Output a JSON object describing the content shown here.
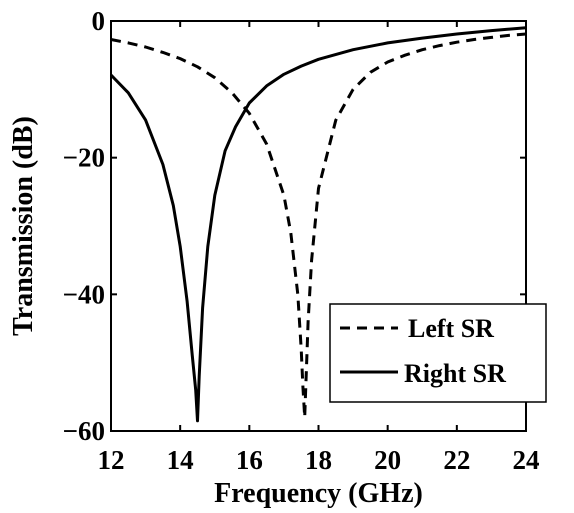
{
  "chart_data": {
    "type": "line",
    "xlabel": "Frequency (GHz)",
    "ylabel": "Transmission (dB)",
    "xlim": [
      12,
      24
    ],
    "ylim": [
      -60,
      0
    ],
    "x_ticks": [
      "12",
      "14",
      "16",
      "18",
      "20",
      "22",
      "24"
    ],
    "y_ticks": [
      "0",
      "−20",
      "−40",
      "−60"
    ],
    "x_tick_values": [
      12,
      14,
      16,
      18,
      20,
      22,
      24
    ],
    "y_tick_values": [
      0,
      -20,
      -40,
      -60
    ],
    "grid": false,
    "legend_position": "bottom-right",
    "series": [
      {
        "name": "Left SR",
        "style": "dashed",
        "color": "#000000",
        "x": [
          12.0,
          12.5,
          13.0,
          13.5,
          14.0,
          14.5,
          15.0,
          15.5,
          16.0,
          16.5,
          17.0,
          17.2,
          17.4,
          17.5,
          17.55,
          17.6,
          17.65,
          17.7,
          17.8,
          18.0,
          18.5,
          19.0,
          19.5,
          20.0,
          20.5,
          21.0,
          21.5,
          22.0,
          22.5,
          23.0,
          23.5,
          24.0
        ],
        "values": [
          -2.7,
          -3.2,
          -3.8,
          -4.6,
          -5.5,
          -6.7,
          -8.3,
          -10.5,
          -13.5,
          -18.0,
          -25.5,
          -31.0,
          -40.0,
          -48.0,
          -53.5,
          -58.0,
          -51.0,
          -44.0,
          -35.0,
          -24.5,
          -14.5,
          -10.0,
          -7.5,
          -6.0,
          -5.0,
          -4.2,
          -3.6,
          -3.1,
          -2.7,
          -2.4,
          -2.1,
          -1.9
        ]
      },
      {
        "name": "Right SR",
        "style": "solid",
        "color": "#000000",
        "x": [
          12.0,
          12.5,
          13.0,
          13.5,
          13.8,
          14.0,
          14.2,
          14.35,
          14.45,
          14.5,
          14.55,
          14.65,
          14.8,
          15.0,
          15.3,
          15.6,
          16.0,
          16.5,
          17.0,
          17.5,
          18.0,
          19.0,
          20.0,
          21.0,
          22.0,
          23.0,
          24.0
        ],
        "values": [
          -7.9,
          -10.5,
          -14.5,
          -21.0,
          -27.0,
          -33.0,
          -41.0,
          -49.0,
          -54.0,
          -58.5,
          -52.0,
          -42.0,
          -33.0,
          -25.5,
          -19.0,
          -15.5,
          -12.0,
          -9.5,
          -7.8,
          -6.6,
          -5.6,
          -4.2,
          -3.2,
          -2.5,
          -1.9,
          -1.4,
          -1.0
        ]
      }
    ]
  }
}
